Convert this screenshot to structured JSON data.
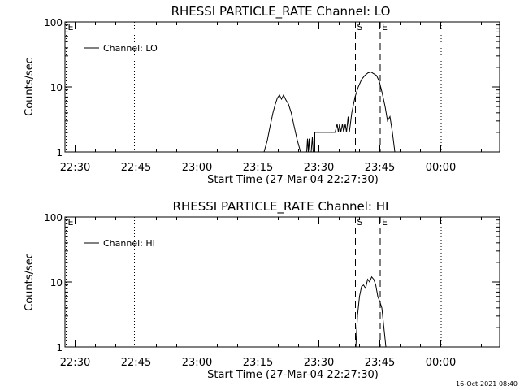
{
  "footer": {
    "timestamp": "16-Oct-2021 08:40"
  },
  "chart_data": [
    {
      "type": "line",
      "title": "RHESSI PARTICLE_RATE Channel: LO",
      "xlabel": "Start Time (27-Mar-04 22:27:30)",
      "ylabel": "Counts/sec",
      "xscale": "time (minutes after 22:27:30)",
      "yscale": "log",
      "xlim": [
        0,
        107
      ],
      "ylim": [
        1,
        100
      ],
      "xticks": [
        "22:30",
        "22:45",
        "23:00",
        "23:15",
        "23:30",
        "23:45",
        "00:00"
      ],
      "xtick_values": [
        2.5,
        17.5,
        32.5,
        47.5,
        62.5,
        77.5,
        92.5
      ],
      "yticks": [
        "1",
        "10",
        "100"
      ],
      "ytick_values": [
        1,
        10,
        100
      ],
      "legend": {
        "position": "top-left",
        "entries": [
          "Channel: LO"
        ]
      },
      "markers": [
        {
          "label": "E",
          "x": 0.3,
          "style": "dotted",
          "label_side": "right"
        },
        {
          "label": "",
          "x": 17.1,
          "style": "dotted"
        },
        {
          "label": "S",
          "x": 71.5,
          "style": "dashed",
          "label_side": "right"
        },
        {
          "label": "E",
          "x": 77.6,
          "style": "dashed",
          "label_side": "right"
        },
        {
          "label": "",
          "x": 92.6,
          "style": "dotted"
        }
      ],
      "series": [
        {
          "name": "Channel: LO",
          "x": [
            49.0,
            49.8,
            50.5,
            51.2,
            51.8,
            52.3,
            52.8,
            53.3,
            53.8,
            54.4,
            55.0,
            55.7,
            56.4,
            57.2,
            58.0,
            59.5,
            59.7,
            59.9,
            60.1,
            60.3,
            60.6,
            60.9,
            61.1,
            61.3,
            61.5,
            61.5,
            64.0,
            66.5,
            67.0,
            67.3,
            67.6,
            67.9,
            68.3,
            68.6,
            69.0,
            69.3,
            69.7,
            70.0,
            70.6,
            71.4,
            72.2,
            73.0,
            73.8,
            74.6,
            75.3,
            76.0,
            76.7,
            77.4,
            78.1,
            78.8,
            79.4,
            80.0,
            80.6,
            81.2
          ],
          "y": [
            1,
            1.5,
            2.5,
            4,
            5.5,
            6.8,
            7.5,
            6.5,
            7.5,
            6.3,
            5.5,
            4.0,
            2.5,
            1.5,
            1,
            1,
            1.6,
            1,
            1.6,
            1,
            1,
            1.7,
            1,
            1,
            1,
            2,
            2,
            2,
            2.7,
            2,
            2.7,
            2,
            2.7,
            2,
            2.7,
            2,
            3.5,
            2,
            4,
            7,
            10,
            13,
            15,
            16.5,
            17,
            16,
            15,
            12,
            8,
            5,
            3,
            3.5,
            2,
            1
          ]
        }
      ]
    },
    {
      "type": "line",
      "title": "RHESSI PARTICLE_RATE Channel: HI",
      "xlabel": "Start Time (27-Mar-04 22:27:30)",
      "ylabel": "Counts/sec",
      "xscale": "time (minutes after 22:27:30)",
      "yscale": "log",
      "xlim": [
        0,
        107
      ],
      "ylim": [
        1,
        100
      ],
      "xticks": [
        "22:30",
        "22:45",
        "23:00",
        "23:15",
        "23:30",
        "23:45",
        "00:00"
      ],
      "xtick_values": [
        2.5,
        17.5,
        32.5,
        47.5,
        62.5,
        77.5,
        92.5
      ],
      "yticks": [
        "1",
        "10",
        "100"
      ],
      "ytick_values": [
        1,
        10,
        100
      ],
      "legend": {
        "position": "top-left",
        "entries": [
          "Channel: HI"
        ]
      },
      "markers": [
        {
          "label": "E",
          "x": 0.3,
          "style": "dotted",
          "label_side": "right"
        },
        {
          "label": "",
          "x": 17.1,
          "style": "dotted"
        },
        {
          "label": "S",
          "x": 71.5,
          "style": "dashed",
          "label_side": "right"
        },
        {
          "label": "E",
          "x": 77.6,
          "style": "dashed",
          "label_side": "right"
        },
        {
          "label": "",
          "x": 92.6,
          "style": "dotted"
        }
      ],
      "series": [
        {
          "name": "Channel: HI",
          "x": [
            71.6,
            72.0,
            72.5,
            73.0,
            73.5,
            74.0,
            74.5,
            75.0,
            75.5,
            76.0,
            76.5,
            77.0,
            77.5,
            78.0,
            78.5,
            79.0
          ],
          "y": [
            1,
            3,
            6,
            8.5,
            9,
            8,
            11,
            10,
            12,
            11,
            9,
            6,
            5,
            4,
            2,
            1
          ]
        }
      ]
    }
  ]
}
